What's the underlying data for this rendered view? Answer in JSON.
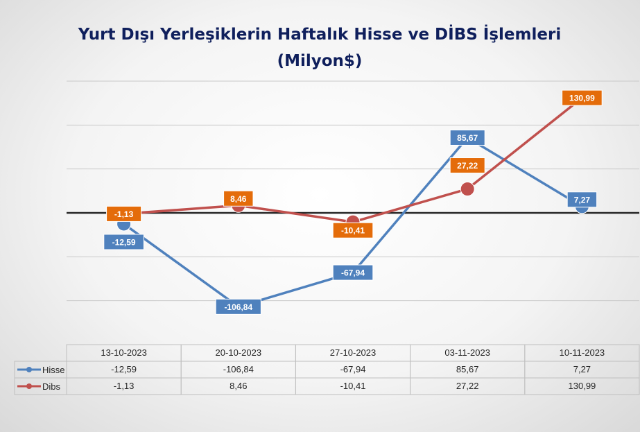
{
  "chart_data": {
    "type": "line",
    "title": "Yurt Dışı Yerleşiklerin Haftalık Hisse ve DİBS İşlemleri",
    "subtitle": "(Milyon$)",
    "categories": [
      "13-10-2023",
      "20-10-2023",
      "27-10-2023",
      "03-11-2023",
      "10-11-2023"
    ],
    "series": [
      {
        "name": "Hisse",
        "color": "#4f81bd",
        "label_bg": "#4f81bd",
        "values": [
          -12.59,
          -106.84,
          -67.94,
          85.67,
          7.27
        ],
        "labels": [
          "-12,59",
          "-106,84",
          "-67,94",
          "85,67",
          "7,27"
        ]
      },
      {
        "name": "Dibs",
        "color": "#c0504d",
        "label_bg": "#e46c0a",
        "values": [
          -1.13,
          8.46,
          -10.41,
          27.22,
          130.99
        ],
        "labels": [
          "-1,13",
          "8,46",
          "-10,41",
          "27,22",
          "130,99"
        ]
      }
    ],
    "ylim": [
      -150,
      150
    ],
    "gridlines": [
      -100,
      -50,
      50,
      100,
      150
    ],
    "legend": "data-table"
  }
}
